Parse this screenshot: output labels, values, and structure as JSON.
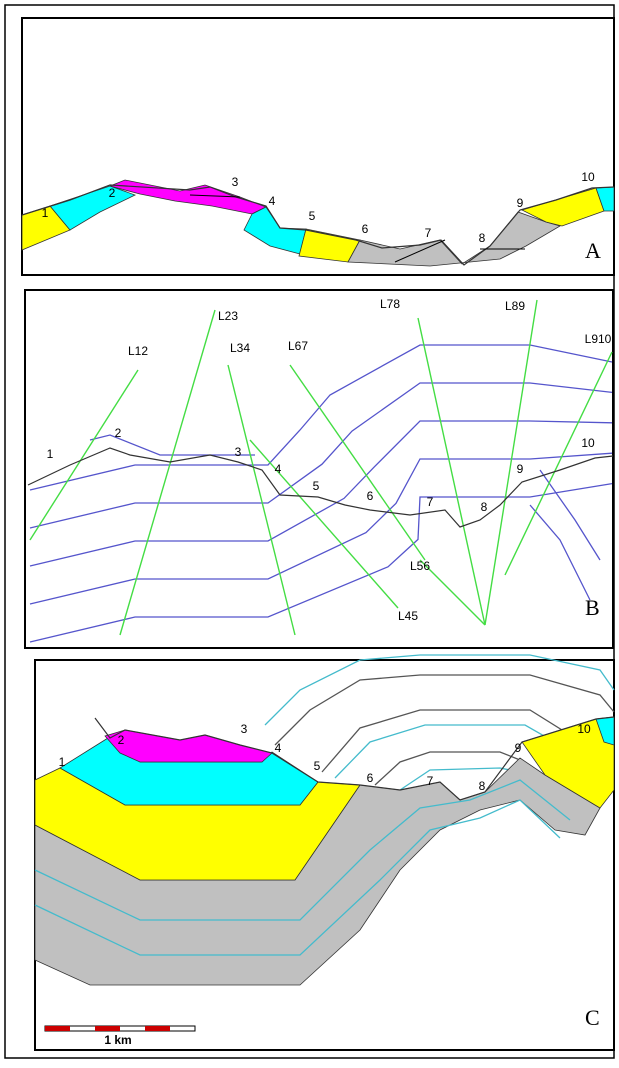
{
  "panels": [
    {
      "label": "A",
      "points": [
        "1",
        "2",
        "3",
        "4",
        "5",
        "6",
        "7",
        "8",
        "9",
        "10"
      ]
    },
    {
      "label": "B",
      "points": [
        "1",
        "2",
        "3",
        "4",
        "5",
        "6",
        "7",
        "8",
        "9",
        "10"
      ],
      "lines": [
        "L12",
        "L23",
        "L34",
        "L67",
        "L78",
        "L89",
        "L910",
        "L56",
        "L45"
      ]
    },
    {
      "label": "C",
      "points": [
        "1",
        "2",
        "3",
        "4",
        "5",
        "6",
        "7",
        "8",
        "9",
        "10"
      ],
      "scale_label": "1 km"
    }
  ]
}
